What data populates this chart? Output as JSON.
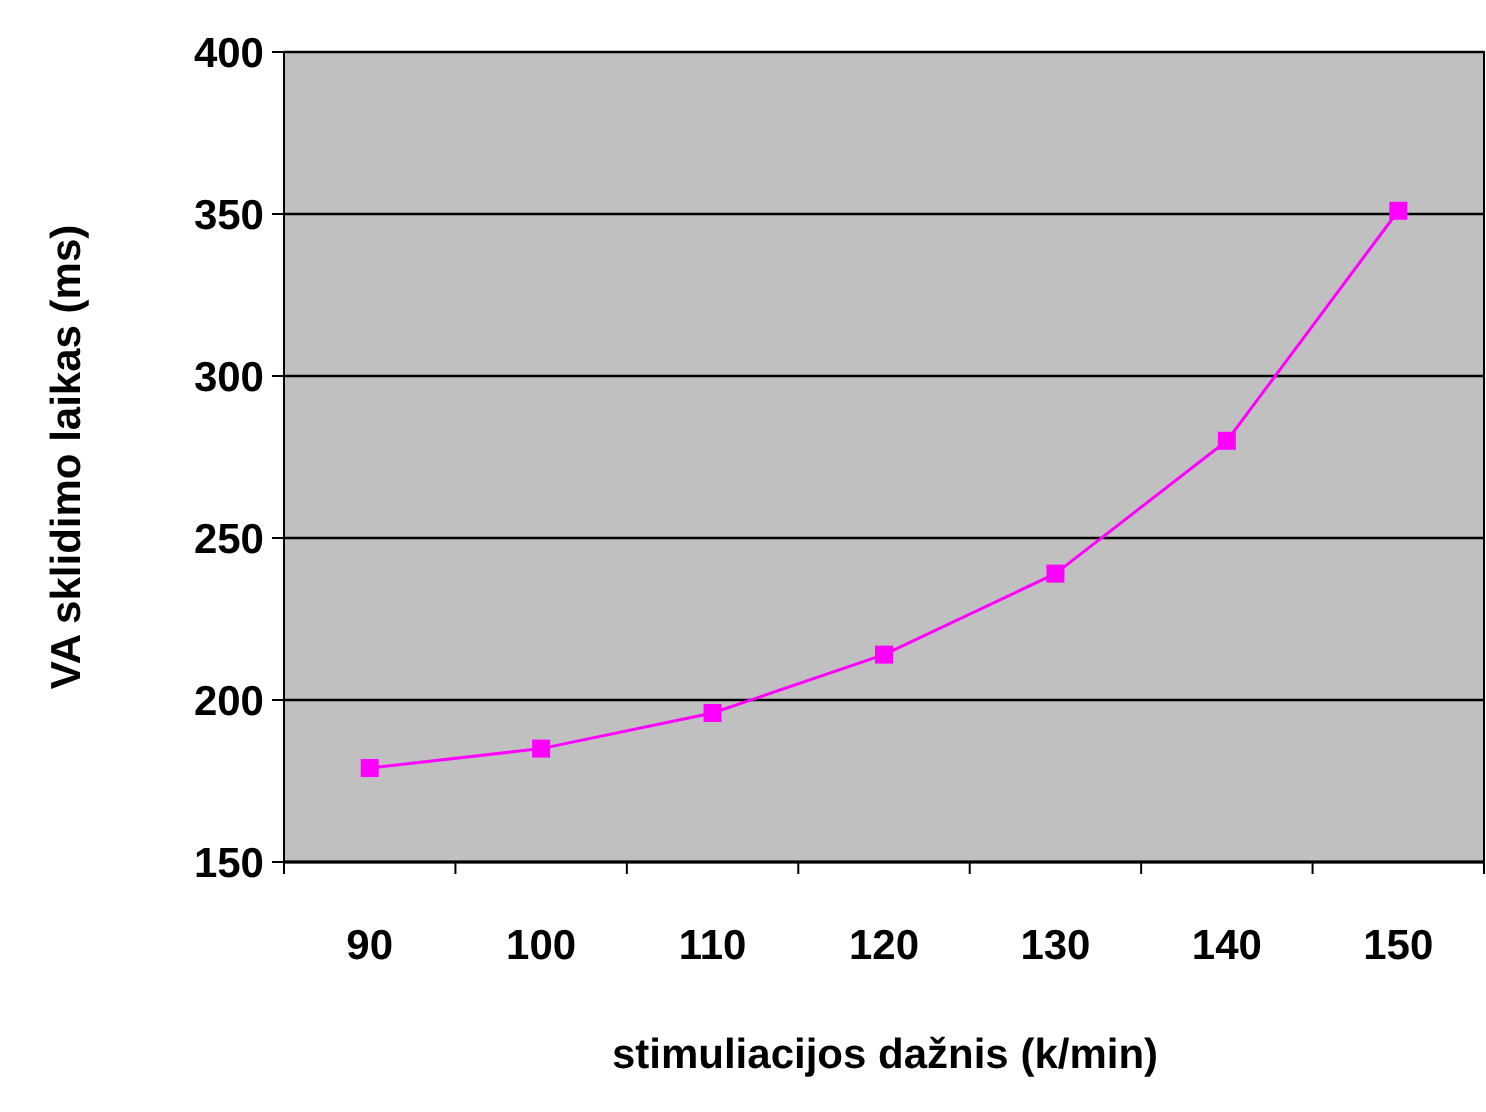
{
  "chart_data": {
    "type": "line",
    "xlabel": "stimuliacijos dažnis (k/min)",
    "ylabel": "VA sklidimo laikas (ms)",
    "categories": [
      "90",
      "100",
      "110",
      "120",
      "130",
      "140",
      "150"
    ],
    "series": [
      {
        "color": "#ff00ff",
        "values": [
          179,
          185,
          196,
          214,
          239,
          280,
          351
        ]
      }
    ],
    "ylim": [
      150,
      400
    ],
    "yticks": [
      150,
      200,
      250,
      300,
      350,
      400
    ],
    "grid": "y",
    "marker": "square",
    "line_style": "solid"
  }
}
